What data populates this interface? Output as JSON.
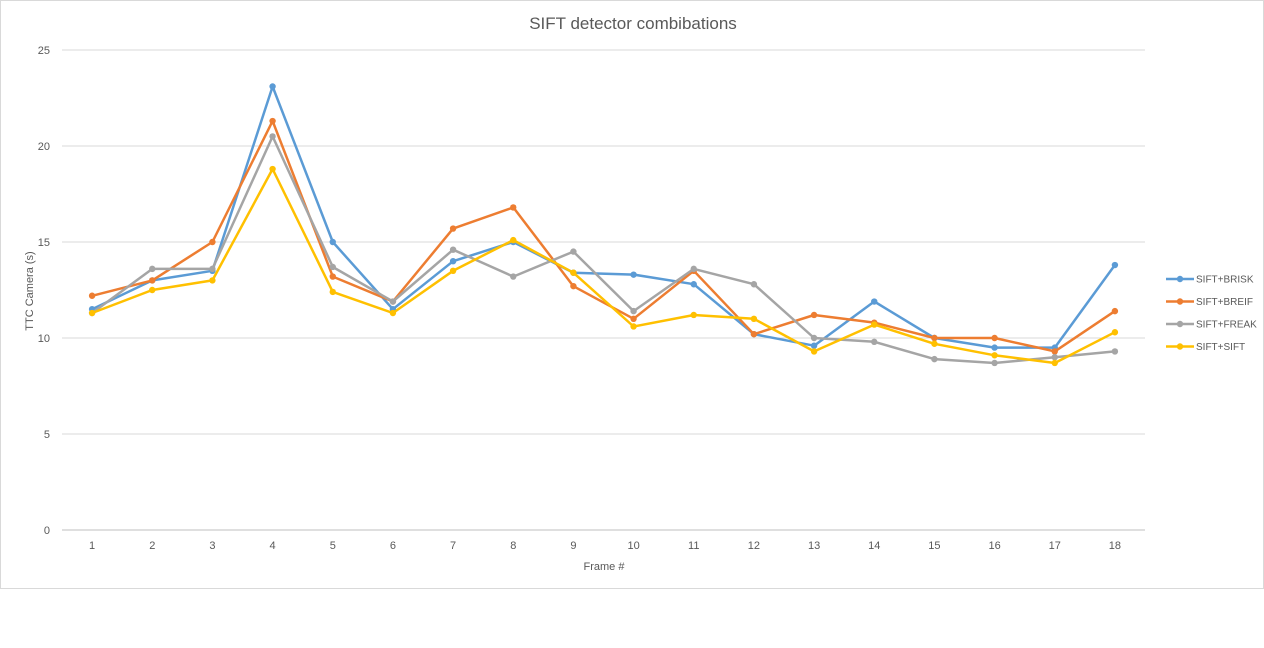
{
  "chart_data": {
    "type": "line",
    "title": "SIFT detector combibations",
    "xlabel": "Frame #",
    "ylabel": "TTC Camera (s)",
    "ylim": [
      0,
      25
    ],
    "yticks": [
      "0",
      "5",
      "10",
      "15",
      "20",
      "25"
    ],
    "categories": [
      "1",
      "2",
      "3",
      "4",
      "5",
      "6",
      "7",
      "8",
      "9",
      "10",
      "11",
      "12",
      "13",
      "14",
      "15",
      "16",
      "17",
      "18"
    ],
    "grid": "horizontal",
    "legend_position": "right",
    "series": [
      {
        "name": "SIFT+BRISK",
        "color": "#5b9bd5",
        "values": [
          11.5,
          13.0,
          13.5,
          23.1,
          15.0,
          11.5,
          14.0,
          15.0,
          13.4,
          13.3,
          12.8,
          10.2,
          9.6,
          11.9,
          10.0,
          9.5,
          9.5,
          13.8
        ]
      },
      {
        "name": "SIFT+BREIF",
        "color": "#ed7d31",
        "values": [
          12.2,
          13.0,
          15.0,
          21.3,
          13.2,
          11.9,
          15.7,
          16.8,
          12.7,
          11.0,
          13.5,
          10.2,
          11.2,
          10.8,
          10.0,
          10.0,
          9.3,
          11.4
        ]
      },
      {
        "name": "SIFT+FREAK",
        "color": "#a5a5a5",
        "values": [
          11.3,
          13.6,
          13.6,
          20.5,
          13.7,
          11.9,
          14.6,
          13.2,
          14.5,
          11.4,
          13.6,
          12.8,
          10.0,
          9.8,
          8.9,
          8.7,
          9.0,
          9.3
        ]
      },
      {
        "name": "SIFT+SIFT",
        "color": "#ffc000",
        "values": [
          11.3,
          12.5,
          13.0,
          18.8,
          12.4,
          11.3,
          13.5,
          15.1,
          13.4,
          10.6,
          11.2,
          11.0,
          9.3,
          10.7,
          9.7,
          9.1,
          8.7,
          10.3
        ]
      }
    ]
  }
}
